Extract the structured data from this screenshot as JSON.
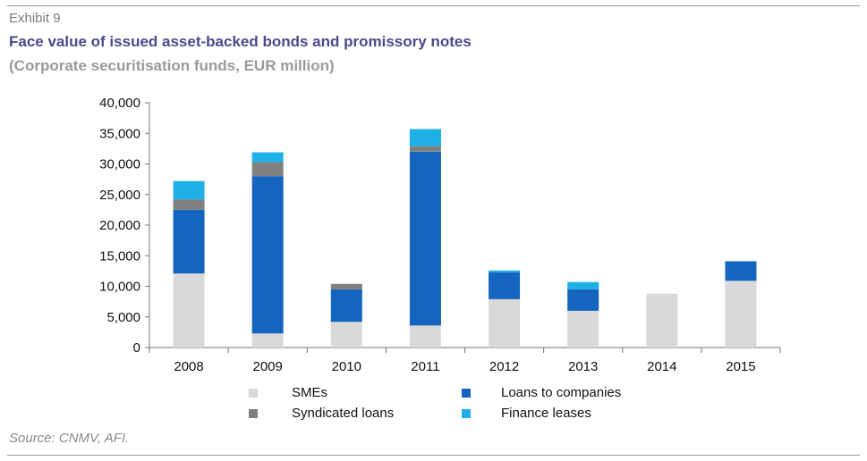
{
  "header": {
    "exhibit": "Exhibit 9",
    "title": "Face value of issued asset-backed bonds and promissory notes",
    "subtitle": "(Corporate securitisation funds, EUR million)"
  },
  "footer": {
    "source": "Source: CNMV, AFI."
  },
  "chart_data": {
    "type": "bar",
    "stacked": true,
    "categories": [
      "2008",
      "2009",
      "2010",
      "2011",
      "2012",
      "2013",
      "2014",
      "2015"
    ],
    "series": [
      {
        "name": "SMEs",
        "color": "#d9d9d9",
        "values": [
          12100,
          2300,
          4200,
          3600,
          7900,
          6000,
          8800,
          10900
        ]
      },
      {
        "name": "Loans to companies",
        "color": "#1565c0",
        "values": [
          10400,
          25700,
          5300,
          28400,
          4400,
          3500,
          0,
          3200
        ]
      },
      {
        "name": "Syndicated loans",
        "color": "#808080",
        "values": [
          1700,
          2300,
          900,
          900,
          0,
          0,
          0,
          0
        ]
      },
      {
        "name": "Finance leases",
        "color": "#1eb0e6",
        "values": [
          3000,
          1600,
          0,
          2800,
          300,
          1200,
          0,
          0
        ]
      }
    ],
    "ylim": [
      0,
      40000
    ],
    "yticks": [
      "0",
      "5,000",
      "10,000",
      "15,000",
      "20,000",
      "25,000",
      "30,000",
      "35,000",
      "40,000"
    ],
    "ytick_values": [
      0,
      5000,
      10000,
      15000,
      20000,
      25000,
      30000,
      35000,
      40000
    ],
    "grid": false,
    "legend_position": "bottom"
  }
}
